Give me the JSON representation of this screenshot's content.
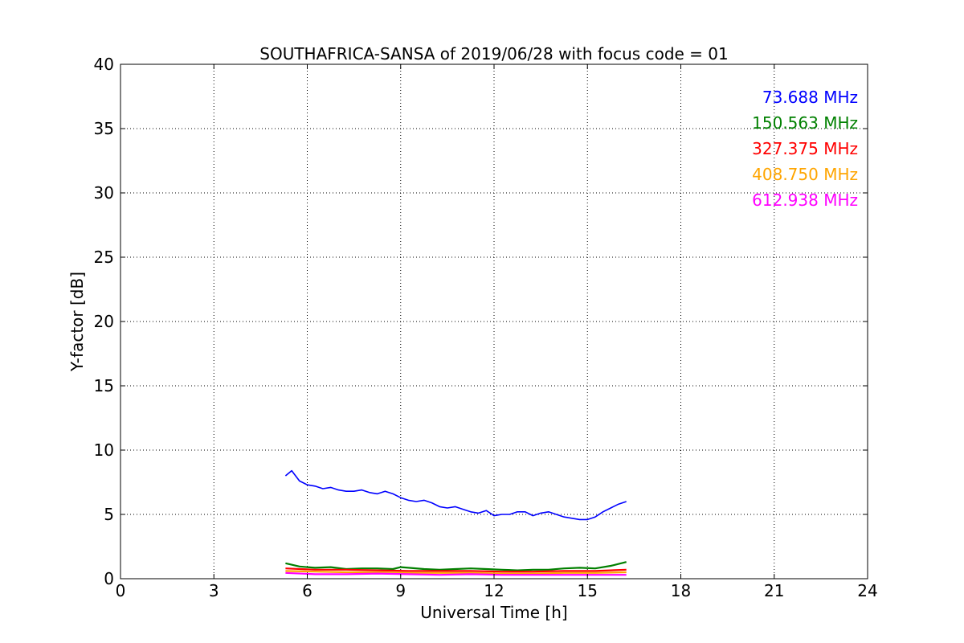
{
  "chart_data": {
    "type": "line",
    "title": "SOUTHAFRICA-SANSA of 2019/06/28 with focus code = 01",
    "xlabel": "Universal Time [h]",
    "ylabel": "Y-factor [dB]",
    "xlim": [
      0,
      24
    ],
    "ylim": [
      0,
      40
    ],
    "xticks": [
      0,
      3,
      6,
      9,
      12,
      15,
      18,
      21,
      24
    ],
    "yticks": [
      0,
      5,
      10,
      15,
      20,
      25,
      30,
      35,
      40
    ],
    "grid": true,
    "legend": "top-right",
    "series": [
      {
        "name": "73.688 MHz",
        "color": "#0000ff",
        "x": [
          5.3,
          5.5,
          5.75,
          6.0,
          6.25,
          6.5,
          6.75,
          7.0,
          7.25,
          7.5,
          7.75,
          8.0,
          8.25,
          8.5,
          8.75,
          9.0,
          9.25,
          9.5,
          9.75,
          10.0,
          10.25,
          10.5,
          10.75,
          11.0,
          11.25,
          11.5,
          11.75,
          12.0,
          12.25,
          12.5,
          12.75,
          13.0,
          13.25,
          13.5,
          13.75,
          14.0,
          14.25,
          14.5,
          14.75,
          15.0,
          15.25,
          15.5,
          15.75,
          16.0,
          16.25
        ],
        "values": [
          8.0,
          8.4,
          7.6,
          7.3,
          7.2,
          7.0,
          7.1,
          6.9,
          6.8,
          6.8,
          6.9,
          6.7,
          6.6,
          6.8,
          6.6,
          6.3,
          6.1,
          6.0,
          6.1,
          5.9,
          5.6,
          5.5,
          5.6,
          5.4,
          5.2,
          5.1,
          5.3,
          4.9,
          5.0,
          5.0,
          5.2,
          5.2,
          4.9,
          5.1,
          5.2,
          5.0,
          4.8,
          4.7,
          4.6,
          4.6,
          4.8,
          5.2,
          5.5,
          5.8,
          6.0
        ]
      },
      {
        "name": "150.563 MHz",
        "color": "#008000",
        "x": [
          5.3,
          5.75,
          6.25,
          6.75,
          7.25,
          7.75,
          8.25,
          8.75,
          9.0,
          9.25,
          9.75,
          10.25,
          10.75,
          11.25,
          11.75,
          12.25,
          12.75,
          13.25,
          13.75,
          14.25,
          14.75,
          15.25,
          15.75,
          16.25
        ],
        "values": [
          1.2,
          0.95,
          0.85,
          0.9,
          0.75,
          0.8,
          0.8,
          0.75,
          0.9,
          0.85,
          0.75,
          0.7,
          0.75,
          0.8,
          0.75,
          0.7,
          0.65,
          0.7,
          0.7,
          0.8,
          0.85,
          0.8,
          1.0,
          1.3
        ]
      },
      {
        "name": "327.375 MHz",
        "color": "#ff0000",
        "x": [
          5.3,
          6.25,
          7.25,
          8.25,
          9.25,
          10.25,
          11.25,
          12.25,
          13.25,
          14.25,
          15.25,
          16.25
        ],
        "values": [
          0.8,
          0.7,
          0.7,
          0.65,
          0.6,
          0.6,
          0.6,
          0.55,
          0.55,
          0.6,
          0.6,
          0.7
        ]
      },
      {
        "name": "408.750 MHz",
        "color": "#ffa500",
        "x": [
          5.3,
          6.25,
          7.25,
          8.25,
          9.25,
          10.25,
          11.25,
          12.25,
          13.25,
          14.25,
          15.25,
          16.25
        ],
        "values": [
          0.6,
          0.55,
          0.5,
          0.5,
          0.45,
          0.45,
          0.45,
          0.4,
          0.4,
          0.45,
          0.45,
          0.5
        ]
      },
      {
        "name": "612.938 MHz",
        "color": "#ff00ff",
        "x": [
          5.3,
          6.25,
          7.25,
          8.25,
          9.25,
          10.25,
          11.25,
          12.25,
          13.25,
          14.25,
          15.25,
          16.25
        ],
        "values": [
          0.45,
          0.35,
          0.35,
          0.4,
          0.35,
          0.3,
          0.35,
          0.3,
          0.3,
          0.3,
          0.3,
          0.3
        ]
      }
    ]
  }
}
